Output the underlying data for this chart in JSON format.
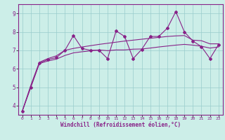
{
  "xlabel": "Windchill (Refroidissement éolien,°C)",
  "xlim": [
    -0.5,
    23.5
  ],
  "ylim": [
    3.5,
    9.5
  ],
  "yticks": [
    4,
    5,
    6,
    7,
    8,
    9
  ],
  "xticks": [
    0,
    1,
    2,
    3,
    4,
    5,
    6,
    7,
    8,
    9,
    10,
    11,
    12,
    13,
    14,
    15,
    16,
    17,
    18,
    19,
    20,
    21,
    22,
    23
  ],
  "bg_color": "#cceee8",
  "line_color": "#882288",
  "grid_color": "#99cccc",
  "line_jagged_x": [
    0,
    1,
    2,
    3,
    4,
    5,
    6,
    7,
    8,
    9,
    10,
    11,
    12,
    13,
    14,
    15,
    16,
    17,
    18,
    19,
    20,
    21,
    22,
    23
  ],
  "line_jagged_y": [
    3.7,
    5.0,
    6.3,
    6.5,
    6.6,
    7.0,
    7.8,
    7.1,
    7.0,
    7.0,
    6.55,
    8.05,
    7.75,
    6.55,
    7.05,
    7.75,
    7.75,
    8.2,
    9.1,
    8.0,
    7.5,
    7.2,
    6.55,
    7.3
  ],
  "line_upper_x": [
    0,
    1,
    2,
    3,
    4,
    5,
    6,
    7,
    8,
    9,
    10,
    11,
    12,
    13,
    14,
    15,
    16,
    17,
    18,
    19,
    20,
    21,
    22,
    23
  ],
  "line_upper_y": [
    3.7,
    5.1,
    6.35,
    6.55,
    6.7,
    7.0,
    7.1,
    7.18,
    7.25,
    7.32,
    7.38,
    7.44,
    7.5,
    7.55,
    7.6,
    7.65,
    7.7,
    7.75,
    7.78,
    7.8,
    7.55,
    7.52,
    7.35,
    7.35
  ],
  "line_lower_x": [
    0,
    1,
    2,
    3,
    4,
    5,
    6,
    7,
    8,
    9,
    10,
    11,
    12,
    13,
    14,
    15,
    16,
    17,
    18,
    19,
    20,
    21,
    22,
    23
  ],
  "line_lower_y": [
    3.7,
    5.0,
    6.28,
    6.42,
    6.52,
    6.72,
    6.86,
    6.92,
    6.97,
    7.02,
    6.98,
    7.02,
    7.02,
    7.06,
    7.07,
    7.12,
    7.18,
    7.23,
    7.28,
    7.32,
    7.28,
    7.22,
    7.12,
    7.18
  ]
}
